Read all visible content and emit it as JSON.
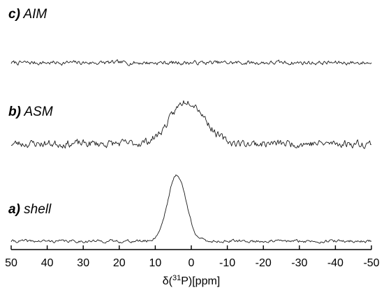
{
  "chart_data": {
    "type": "line",
    "x_axis": {
      "label_prefix": "δ(",
      "label_sup": "31",
      "label_suffix": "P)[ppm]",
      "range": [
        50,
        -50
      ],
      "reversed": true,
      "ticks": [
        50,
        40,
        30,
        20,
        10,
        0,
        -10,
        -20,
        -30,
        -40,
        -50
      ],
      "tick_labels": [
        "50",
        "40",
        "30",
        "20",
        "10",
        "0",
        "-10",
        "-20",
        "-30",
        "-40",
        "-50"
      ]
    },
    "grid": false,
    "series": [
      {
        "name_letter": "c)",
        "name_text": " AIM",
        "baseline": 0,
        "noise_amplitude": 0.05,
        "peak": null,
        "seed": 7
      },
      {
        "name_letter": "b)",
        "name_text": " ASM",
        "baseline": 0,
        "noise_amplitude": 0.09,
        "peak": {
          "center_ppm": 1,
          "height": 0.62,
          "fwhm_ppm": 11
        },
        "seed": 23
      },
      {
        "name_letter": "a)",
        "name_text": " shell",
        "baseline": 0,
        "noise_amplitude": 0.035,
        "peak": {
          "center_ppm": 4,
          "height": 0.95,
          "fwhm_ppm": 6
        },
        "seed": 41
      }
    ]
  }
}
